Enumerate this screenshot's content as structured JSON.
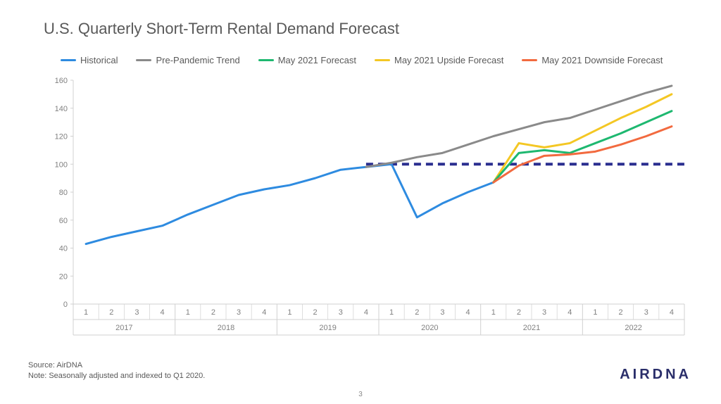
{
  "title": "U.S. Quarterly Short-Term Rental Demand Forecast",
  "source_line1": "Source: AirDNA",
  "source_line2": "Note: Seasonally adjusted and indexed to Q1 2020.",
  "logo_text": "AIRDNA",
  "page_number": "3",
  "chart": {
    "type": "line",
    "background_color": "#ffffff",
    "grid_border_color": "#d0d0d0",
    "axis_label_fontsize": 11,
    "axis_label_color": "#808080",
    "y": {
      "min": 0,
      "max": 160,
      "tick_step": 20,
      "ticks": [
        0,
        20,
        40,
        60,
        80,
        100,
        120,
        140,
        160
      ]
    },
    "x": {
      "years": [
        "2017",
        "2018",
        "2019",
        "2020",
        "2021",
        "2022"
      ],
      "quarters_per_year": [
        "1",
        "2",
        "3",
        "4"
      ]
    },
    "reference_line": {
      "value": 100,
      "color": "#2a2e8f",
      "stroke_width": 4,
      "dash": "10,7",
      "start_index": 12
    },
    "legend": [
      {
        "label": "Historical",
        "color": "#2e8be0"
      },
      {
        "label": "Pre-Pandemic Trend",
        "color": "#8a8a8a"
      },
      {
        "label": "May 2021 Forecast",
        "color": "#1eb870"
      },
      {
        "label": "May 2021 Upside Forecast",
        "color": "#f4c724"
      },
      {
        "label": "May 2021 Downside Forecast",
        "color": "#f26a3f"
      }
    ],
    "series": [
      {
        "name": "Historical",
        "color": "#2e8be0",
        "stroke_width": 3,
        "points": [
          [
            1,
            43
          ],
          [
            2,
            48
          ],
          [
            3,
            52
          ],
          [
            4,
            56
          ],
          [
            5,
            64
          ],
          [
            6,
            71
          ],
          [
            7,
            78
          ],
          [
            8,
            82
          ],
          [
            9,
            85
          ],
          [
            10,
            90
          ],
          [
            11,
            96
          ],
          [
            12,
            98
          ],
          [
            13,
            100
          ],
          [
            14,
            62
          ],
          [
            15,
            72
          ],
          [
            16,
            80
          ],
          [
            17,
            87
          ]
        ]
      },
      {
        "name": "Pre-Pandemic Trend",
        "color": "#8a8a8a",
        "stroke_width": 3,
        "points": [
          [
            12,
            98
          ],
          [
            13,
            101
          ],
          [
            14,
            105
          ],
          [
            15,
            108
          ],
          [
            16,
            114
          ],
          [
            17,
            120
          ],
          [
            18,
            125
          ],
          [
            19,
            130
          ],
          [
            20,
            133
          ],
          [
            21,
            139
          ],
          [
            22,
            145
          ],
          [
            23,
            151
          ],
          [
            24,
            156
          ]
        ]
      },
      {
        "name": "May 2021 Upside Forecast",
        "color": "#f4c724",
        "stroke_width": 3,
        "points": [
          [
            17,
            87
          ],
          [
            18,
            115
          ],
          [
            19,
            112
          ],
          [
            20,
            115
          ],
          [
            21,
            124
          ],
          [
            22,
            133
          ],
          [
            23,
            141
          ],
          [
            24,
            150
          ]
        ]
      },
      {
        "name": "May 2021 Forecast",
        "color": "#1eb870",
        "stroke_width": 3,
        "points": [
          [
            17,
            87
          ],
          [
            18,
            108
          ],
          [
            19,
            110
          ],
          [
            20,
            108
          ],
          [
            21,
            115
          ],
          [
            22,
            122
          ],
          [
            23,
            130
          ],
          [
            24,
            138
          ]
        ]
      },
      {
        "name": "May 2021 Downside Forecast",
        "color": "#f26a3f",
        "stroke_width": 3,
        "points": [
          [
            17,
            87
          ],
          [
            18,
            99
          ],
          [
            19,
            106
          ],
          [
            20,
            107
          ],
          [
            21,
            109
          ],
          [
            22,
            114
          ],
          [
            23,
            120
          ],
          [
            24,
            127
          ]
        ]
      }
    ]
  }
}
